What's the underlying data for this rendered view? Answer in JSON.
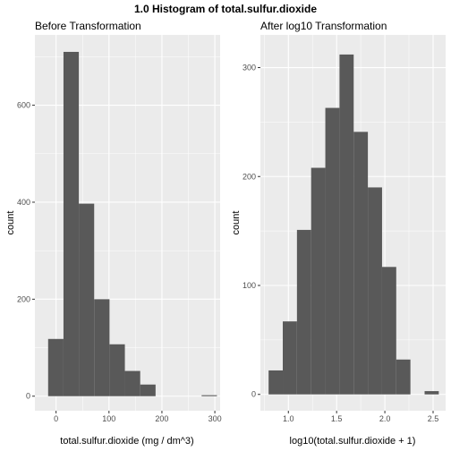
{
  "title": "1.0 Histogram of total.sulfur.dioxide",
  "chart_data": [
    {
      "type": "bar",
      "title": "Before Transformation",
      "xlabel": "total.sulfur.dioxide (mg / dm^3)",
      "ylabel": "count",
      "xlim": [
        -40,
        310
      ],
      "ylim": [
        -30,
        745
      ],
      "x_ticks": [
        0,
        100,
        200,
        300
      ],
      "x_tick_labels": [
        "0",
        "100",
        "200",
        "300"
      ],
      "y_ticks": [
        0,
        200,
        400,
        600
      ],
      "y_tick_labels": [
        "0",
        "200",
        "400",
        "600"
      ],
      "bin_width": 29,
      "bins": [
        {
          "x0": -15,
          "x1": 14,
          "count": 118
        },
        {
          "x0": 14,
          "x1": 43,
          "count": 710
        },
        {
          "x0": 43,
          "x1": 72,
          "count": 397
        },
        {
          "x0": 72,
          "x1": 101,
          "count": 200
        },
        {
          "x0": 101,
          "x1": 130,
          "count": 107
        },
        {
          "x0": 130,
          "x1": 159,
          "count": 52
        },
        {
          "x0": 159,
          "x1": 188,
          "count": 24
        },
        {
          "x0": 188,
          "x1": 217,
          "count": 0
        },
        {
          "x0": 217,
          "x1": 246,
          "count": 0
        },
        {
          "x0": 246,
          "x1": 275,
          "count": 0
        },
        {
          "x0": 275,
          "x1": 304,
          "count": 2
        }
      ],
      "grid": true
    },
    {
      "type": "bar",
      "title": "After log10 Transformation",
      "xlabel": "log10(total.sulfur.dioxide + 1)",
      "ylabel": "count",
      "xlim": [
        0.71,
        2.63
      ],
      "ylim": [
        -15,
        330
      ],
      "x_ticks": [
        1.0,
        1.5,
        2.0,
        2.5
      ],
      "x_tick_labels": [
        "1.0",
        "1.5",
        "2.0",
        "2.5"
      ],
      "y_ticks": [
        0,
        100,
        200,
        300
      ],
      "y_tick_labels": [
        "0",
        "100",
        "200",
        "300"
      ],
      "bin_width": 0.147,
      "bins": [
        {
          "x0": 0.795,
          "x1": 0.942,
          "count": 22
        },
        {
          "x0": 0.942,
          "x1": 1.089,
          "count": 67
        },
        {
          "x0": 1.089,
          "x1": 1.236,
          "count": 151
        },
        {
          "x0": 1.236,
          "x1": 1.383,
          "count": 208
        },
        {
          "x0": 1.383,
          "x1": 1.53,
          "count": 263
        },
        {
          "x0": 1.53,
          "x1": 1.677,
          "count": 312
        },
        {
          "x0": 1.677,
          "x1": 1.824,
          "count": 241
        },
        {
          "x0": 1.824,
          "x1": 1.971,
          "count": 190
        },
        {
          "x0": 1.971,
          "x1": 2.118,
          "count": 117
        },
        {
          "x0": 2.118,
          "x1": 2.265,
          "count": 32
        },
        {
          "x0": 2.265,
          "x1": 2.412,
          "count": 0
        },
        {
          "x0": 2.412,
          "x1": 2.559,
          "count": 3
        }
      ],
      "grid": true
    }
  ],
  "colors": {
    "panel_bg": "#ebebeb",
    "grid_major": "#ffffff",
    "bar_fill": "#595959",
    "tick_text": "#4d4d4d",
    "tick_mark": "#333333"
  }
}
